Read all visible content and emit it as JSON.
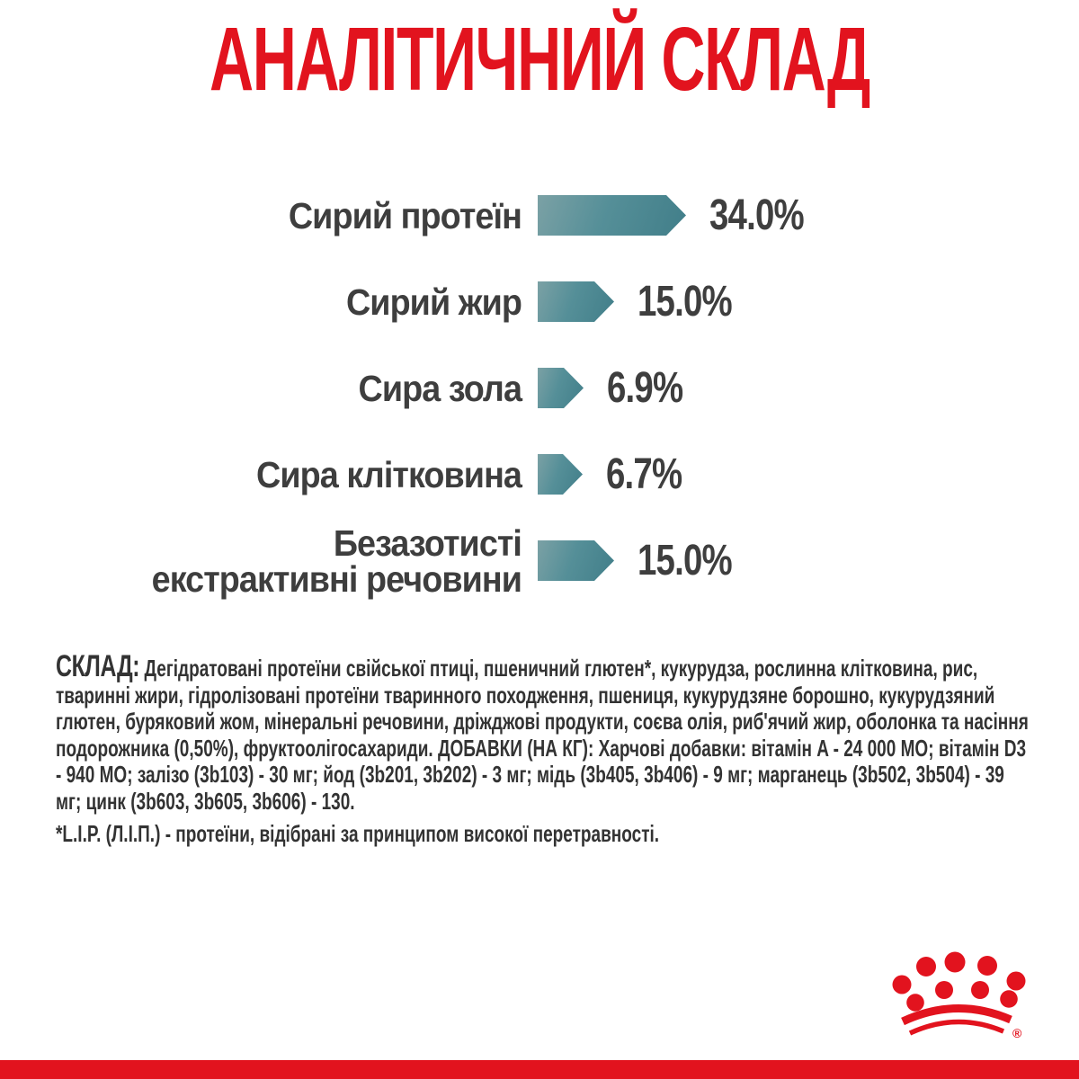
{
  "title": {
    "text": "АНАЛІТИЧНИЙ СКЛАД",
    "color": "#e2131e"
  },
  "chart_data": {
    "type": "bar",
    "orientation": "horizontal",
    "title": "АНАЛІТИЧНИЙ СКЛАД",
    "unit": "%",
    "grid": false,
    "legend": false,
    "xlim": [
      0,
      40
    ],
    "categories": [
      "Сирий протеїн",
      "Сирий жир",
      "Сира зола",
      "Сира клітковина",
      "Безазотисті екстрактивні речовини"
    ],
    "values": [
      34.0,
      15.0,
      6.9,
      6.7,
      15.0
    ],
    "value_labels": [
      "34.0%",
      "15.0%",
      "6.9%",
      "6.7%",
      "15.0%"
    ],
    "rows": [
      {
        "label_lines": [
          "Сирий протеїн"
        ],
        "value": 34.0,
        "value_label": "34.0%"
      },
      {
        "label_lines": [
          "Сирий жир"
        ],
        "value": 15.0,
        "value_label": "15.0%"
      },
      {
        "label_lines": [
          "Сира зола"
        ],
        "value": 6.9,
        "value_label": "6.9%"
      },
      {
        "label_lines": [
          "Сира клітковина"
        ],
        "value": 6.7,
        "value_label": "6.7%"
      },
      {
        "label_lines": [
          "Безазотисті",
          "екстрактивні речовини"
        ],
        "value": 15.0,
        "value_label": "15.0%"
      }
    ],
    "bar_gradient": [
      "#7ba1a5",
      "#558f98",
      "#417e89"
    ],
    "label_color": "#3e3e3e",
    "value_color": "#3e3e3e"
  },
  "composition": {
    "label": "СКЛАД:",
    "text": "Дегідратовані протеїни свійської птиці, пшеничний глютен*, кукурудза, рослинна клітковина, рис, тваринні жири, гідролізовані протеїни тваринного походження, пшениця, кукурудзяне борошно, кукурудзяний глютен, буряковий жом, мінеральні речовини, дріжджові продукти, соєва олія, риб'ячий жир, оболонка та насіння подорожника (0,50%), фруктоолігосахариди. ДОБАВКИ (НА КГ): Харчові добавки: вітамін A - 24 000 МО; вітамін D3 - 940 МО; залізо (3b103) - 30 мг; йод (3b201, 3b202) - 3 мг; мідь (3b405, 3b406) - 9 мг; марганець (3b502, 3b504) - 39 мг; цинк (3b603, 3b605, 3b606) - 130.",
    "footnote": "*L.I.P. (Л.І.П.) - протеїни, відібрані за принципом високої перетравності.",
    "text_color": "#333333"
  },
  "branding": {
    "logo": "royal-canin-crown",
    "logo_color": "#e2131e",
    "trademark": "®",
    "footer_bar_color": "#e2131e"
  }
}
